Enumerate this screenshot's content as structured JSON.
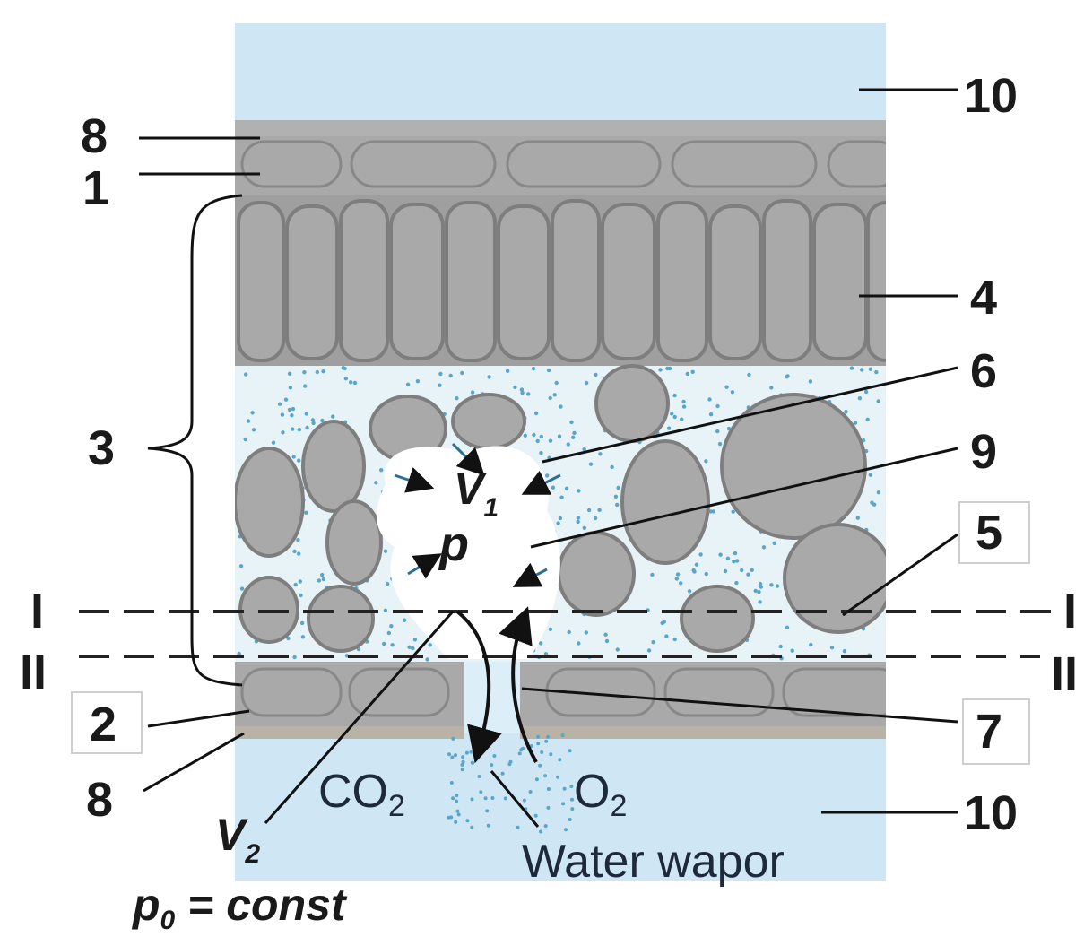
{
  "labels": {
    "n1": "1",
    "n2": "2",
    "n3": "3",
    "n4": "4",
    "n5": "5",
    "n6": "6",
    "n7": "7",
    "n8_top": "8",
    "n8_bottom": "8",
    "n9": "9",
    "n10_top": "10",
    "n10_bottom": "10",
    "line_I_left": "I",
    "line_I_right": "I",
    "line_II_left": "II",
    "line_II_right": "II"
  },
  "symbols": {
    "v1": "V",
    "v1_sub": "1",
    "v2": "V",
    "v2_sub": "2",
    "p": "p",
    "p0_formula": "p",
    "p0_sub": "0",
    "p0_rest": " = const"
  },
  "gases": {
    "co2": "CO",
    "co2_sub": "2",
    "o2": "O",
    "o2_sub": "2",
    "water_vapor": "Water wapor"
  },
  "colors": {
    "air": "#cfe6f5",
    "tissue": "#a9a9a9",
    "cell_outline": "#7e7e7e",
    "vapor_dots": "#5aa6c8",
    "cuticle": "#b9b2a6"
  }
}
